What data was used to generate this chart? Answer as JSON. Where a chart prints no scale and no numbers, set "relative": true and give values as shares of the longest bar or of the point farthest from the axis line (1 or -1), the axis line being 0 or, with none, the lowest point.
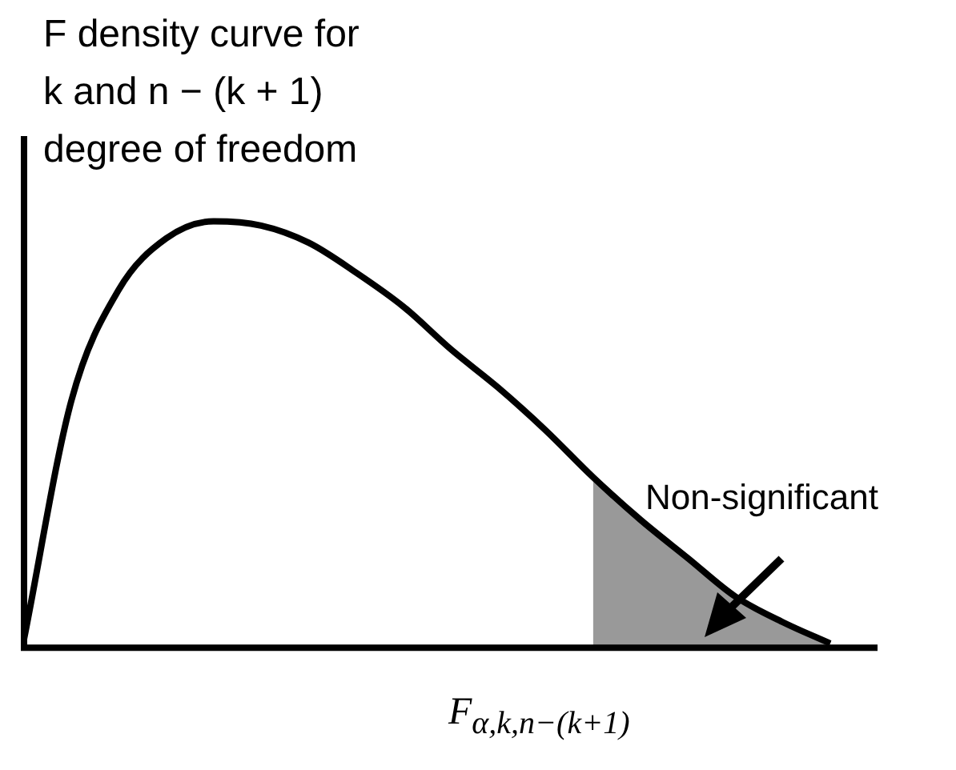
{
  "chart_data": {
    "type": "line",
    "relative": true,
    "title": "F density curve for\nk  and  n − (k + 1)\ndegree of freedom",
    "xlabel": "F$_{α,k,n−(k+1)}$",
    "annotations": [
      "Non-significant"
    ],
    "legend": false,
    "grid": false,
    "marker": "none",
    "categories": [
      null,
      null,
      null,
      null,
      null,
      null,
      null,
      null,
      null,
      null,
      null,
      null,
      null,
      null,
      null,
      null,
      null,
      null,
      null
    ],
    "series": [
      {
        "color": "#000000",
        "values": [
          0.02,
          0.58,
          0.84,
          0.96,
          1.0,
          0.99,
          0.95,
          0.88,
          0.8,
          0.7,
          0.61,
          0.51,
          0.4,
          0.3,
          0.21,
          0.12,
          0.06,
          0.01,
          null
        ]
      },
      {
        "type": "area",
        "color": "#999999",
        "line_style": "dashed",
        "values": [
          null,
          null,
          null,
          null,
          null,
          null,
          null,
          null,
          null,
          null,
          null,
          null,
          0.4,
          0.3,
          0.21,
          0.12,
          0.06,
          0.01,
          null
        ]
      }
    ]
  }
}
